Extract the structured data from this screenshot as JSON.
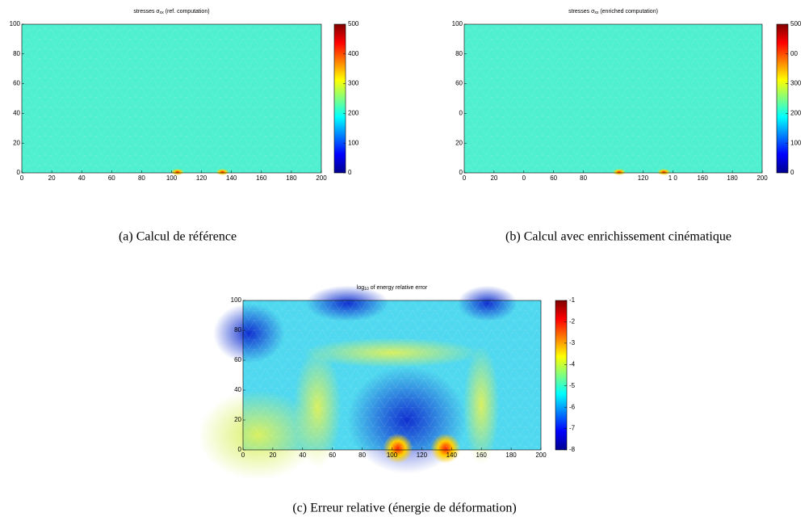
{
  "chart_data": [
    {
      "type": "mesh-field",
      "title": {
        "text": "stresses σ",
        "sub": "xx",
        "rest": " (ref. computation)"
      },
      "xlim": [
        0,
        200
      ],
      "ylim": [
        0,
        100
      ],
      "xticks": [
        0,
        20,
        40,
        60,
        80,
        100,
        120,
        140,
        160,
        180,
        200
      ],
      "yticks": [
        0,
        20,
        40,
        60,
        80,
        100
      ],
      "clim": [
        0,
        500
      ],
      "cticks": [
        0,
        100,
        200,
        300,
        400,
        500
      ],
      "caption": "(a)  Calcul de référence"
    },
    {
      "type": "mesh-field",
      "title": {
        "text": "stresses σ",
        "sub": "xx",
        "rest": " (enriched computation)"
      },
      "xlim": [
        0,
        200
      ],
      "ylim": [
        0,
        100
      ],
      "xticks": [
        0,
        20,
        {
          "value": 40,
          "label": "0"
        },
        60,
        80,
        120,
        {
          "value": 140,
          "label": "1 0"
        },
        160,
        180,
        200
      ],
      "yticks": [
        0,
        20,
        {
          "value": 40,
          "label": "0"
        },
        60,
        80,
        100
      ],
      "clim": [
        0,
        500
      ],
      "cticks": [
        0,
        100,
        200,
        300,
        {
          "value": 400,
          "label": "00"
        },
        500
      ],
      "caption": "(b)  Calcul avec enrichissement cinématique"
    },
    {
      "type": "mesh-field",
      "title": {
        "text": "log",
        "sub": "10",
        "rest": " of energy relative error"
      },
      "xlim": [
        0,
        200
      ],
      "ylim": [
        0,
        100
      ],
      "xticks": [
        0,
        20,
        40,
        60,
        80,
        100,
        120,
        140,
        160,
        180,
        200
      ],
      "yticks": [
        0,
        20,
        40,
        60,
        80,
        100
      ],
      "clim": [
        -8,
        -1
      ],
      "cticks": [
        -8,
        -7,
        -6,
        -5,
        -4,
        -3,
        -2,
        -1
      ],
      "caption": "(c)  Erreur relative (énergie de déformation)"
    }
  ]
}
